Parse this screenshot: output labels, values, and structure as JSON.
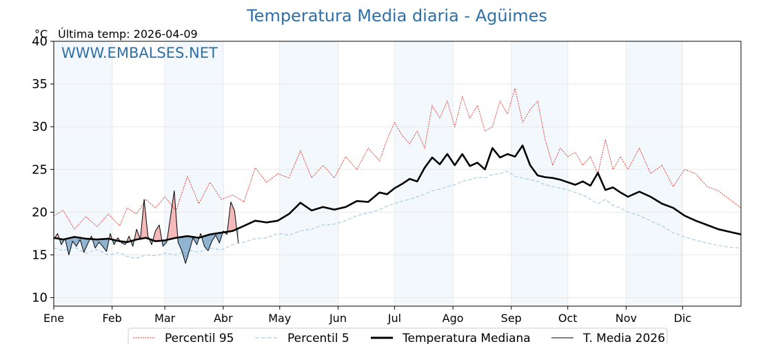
{
  "chart_data": {
    "type": "line",
    "title": "Temperatura Media diaria - Agüimes",
    "unit_label": "°C",
    "last_temp_label": "Última temp: 2026-04-09",
    "watermark": "WWW.EMBALSES.NET",
    "months": [
      "Ene",
      "Feb",
      "Mar",
      "Abr",
      "May",
      "Jun",
      "Jul",
      "Ago",
      "Sep",
      "Oct",
      "Nov",
      "Dic"
    ],
    "yticks": [
      10,
      15,
      20,
      25,
      30,
      35,
      40
    ],
    "xlim": [
      1,
      366
    ],
    "ylim": [
      9,
      40
    ],
    "grid": true,
    "legend_placement": "bottom",
    "series": [
      {
        "name": "Percentil 95",
        "color": "#e8271c",
        "style": "dotted",
        "x": [
          1,
          6,
          12,
          18,
          24,
          30,
          36,
          40,
          45,
          50,
          55,
          60,
          66,
          72,
          78,
          84,
          90,
          96,
          102,
          108,
          114,
          120,
          126,
          132,
          138,
          144,
          150,
          156,
          162,
          168,
          174,
          178,
          182,
          186,
          190,
          194,
          198,
          202,
          206,
          210,
          214,
          218,
          222,
          226,
          230,
          234,
          238,
          242,
          246,
          250,
          254,
          258,
          262,
          266,
          270,
          274,
          278,
          282,
          286,
          290,
          294,
          298,
          302,
          306,
          312,
          318,
          324,
          330,
          336,
          342,
          348,
          354,
          360,
          366
        ],
        "values": [
          19.6,
          20.2,
          18.0,
          19.5,
          18.3,
          19.8,
          18.4,
          20.5,
          19.8,
          21.5,
          20.5,
          21.8,
          20.2,
          24.2,
          21.0,
          23.5,
          21.5,
          22.0,
          21.2,
          25.2,
          23.5,
          24.5,
          24.0,
          27.2,
          24.0,
          25.5,
          24.0,
          26.5,
          25.0,
          27.5,
          26.0,
          28.5,
          30.5,
          29.0,
          28.0,
          29.5,
          27.5,
          32.5,
          31.0,
          33.0,
          30.0,
          33.5,
          31.0,
          32.5,
          29.5,
          30.0,
          33.0,
          31.5,
          34.5,
          30.5,
          32.0,
          33.0,
          28.5,
          25.5,
          27.5,
          26.5,
          27.0,
          25.5,
          26.5,
          24.5,
          28.5,
          25.0,
          26.5,
          25.0,
          27.5,
          24.5,
          25.5,
          23.0,
          25.0,
          24.5,
          23.0,
          22.5,
          21.5,
          20.5
        ]
      },
      {
        "name": "Percentil 5",
        "color": "#a6cde2",
        "style": "dashed",
        "x": [
          1,
          6,
          12,
          18,
          24,
          30,
          36,
          40,
          45,
          50,
          55,
          60,
          66,
          72,
          78,
          84,
          90,
          96,
          102,
          108,
          114,
          120,
          126,
          132,
          138,
          144,
          150,
          156,
          162,
          168,
          174,
          178,
          182,
          186,
          190,
          194,
          198,
          202,
          206,
          210,
          214,
          218,
          222,
          226,
          230,
          234,
          238,
          242,
          246,
          250,
          254,
          258,
          262,
          266,
          270,
          274,
          278,
          282,
          286,
          290,
          294,
          298,
          302,
          306,
          312,
          318,
          324,
          330,
          336,
          342,
          348,
          354,
          360,
          366
        ],
        "values": [
          15.8,
          15.5,
          15.9,
          15.2,
          15.6,
          15.0,
          15.3,
          14.8,
          14.6,
          15.0,
          14.9,
          15.2,
          15.0,
          15.6,
          15.3,
          15.8,
          15.6,
          16.2,
          16.5,
          16.9,
          17.0,
          17.5,
          17.3,
          17.8,
          18.0,
          18.5,
          18.6,
          19.0,
          19.6,
          19.9,
          20.3,
          20.7,
          21.0,
          21.3,
          21.5,
          21.8,
          22.1,
          22.5,
          22.7,
          23.0,
          23.2,
          23.6,
          23.8,
          24.1,
          24.0,
          24.4,
          24.5,
          24.8,
          24.2,
          24.0,
          23.8,
          23.6,
          23.2,
          23.0,
          22.8,
          22.6,
          22.3,
          22.0,
          21.5,
          21.0,
          21.5,
          20.8,
          20.5,
          20.0,
          19.6,
          19.0,
          18.4,
          17.6,
          17.1,
          16.7,
          16.4,
          16.1,
          15.9,
          15.8
        ]
      },
      {
        "name": "Temperatura Mediana",
        "color": "#000000",
        "style": "solid-thick",
        "x": [
          1,
          6,
          12,
          18,
          24,
          30,
          36,
          40,
          45,
          50,
          55,
          60,
          66,
          72,
          78,
          84,
          90,
          96,
          102,
          108,
          114,
          120,
          126,
          132,
          138,
          144,
          150,
          156,
          162,
          168,
          174,
          178,
          182,
          186,
          190,
          194,
          198,
          202,
          206,
          210,
          214,
          218,
          222,
          226,
          230,
          234,
          238,
          242,
          246,
          250,
          254,
          258,
          262,
          266,
          270,
          274,
          278,
          282,
          286,
          290,
          294,
          298,
          302,
          306,
          312,
          318,
          324,
          330,
          336,
          342,
          348,
          354,
          360,
          366
        ],
        "values": [
          17.0,
          16.8,
          17.1,
          16.9,
          16.8,
          16.9,
          16.6,
          16.5,
          16.8,
          17.0,
          16.6,
          16.7,
          17.0,
          17.2,
          17.0,
          17.4,
          17.6,
          17.8,
          18.4,
          19.0,
          18.8,
          19.0,
          19.8,
          21.1,
          20.2,
          20.6,
          20.3,
          20.6,
          21.3,
          21.2,
          22.3,
          22.1,
          22.8,
          23.3,
          23.9,
          23.6,
          25.2,
          26.4,
          25.6,
          26.8,
          25.5,
          26.8,
          25.4,
          25.8,
          25.0,
          27.5,
          26.4,
          26.8,
          26.5,
          27.8,
          25.5,
          24.3,
          24.1,
          24.0,
          23.8,
          23.5,
          23.2,
          23.6,
          23.1,
          24.6,
          22.6,
          22.9,
          22.3,
          21.8,
          22.4,
          21.8,
          21.0,
          20.5,
          19.6,
          19.0,
          18.5,
          18.0,
          17.7,
          17.4
        ]
      },
      {
        "name": "T. Media 2026",
        "color": "#000000",
        "style": "solid-thin",
        "x": [
          1,
          3,
          5,
          7,
          9,
          11,
          13,
          15,
          17,
          19,
          21,
          23,
          25,
          27,
          29,
          31,
          33,
          35,
          37,
          39,
          41,
          43,
          45,
          47,
          49,
          51,
          53,
          55,
          57,
          59,
          61,
          63,
          65,
          67,
          69,
          71,
          73,
          75,
          77,
          79,
          81,
          83,
          85,
          87,
          89,
          91,
          93,
          95,
          97,
          99
        ],
        "values": [
          16.8,
          17.5,
          16.2,
          16.9,
          15.0,
          16.6,
          16.0,
          16.8,
          15.3,
          16.3,
          17.2,
          15.8,
          16.5,
          16.0,
          15.4,
          17.5,
          16.2,
          17.0,
          16.4,
          16.2,
          17.2,
          16.0,
          18.0,
          16.8,
          21.5,
          17.2,
          16.2,
          17.8,
          18.5,
          16.0,
          16.5,
          19.5,
          22.5,
          16.5,
          15.5,
          14.0,
          15.5,
          17.0,
          16.2,
          17.5,
          16.0,
          15.5,
          16.6,
          17.3,
          16.4,
          17.8,
          17.4,
          21.2,
          20.2,
          16.4
        ]
      }
    ]
  }
}
